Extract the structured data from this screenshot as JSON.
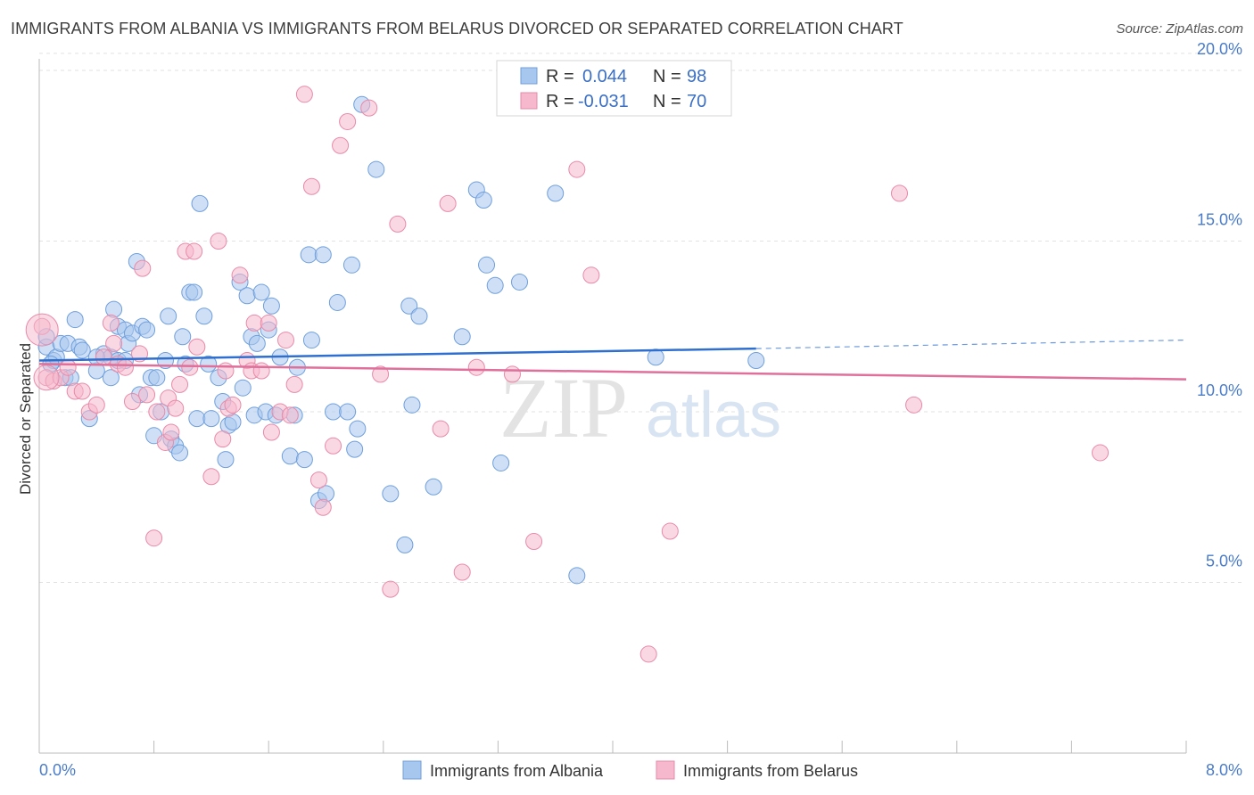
{
  "title": "IMMIGRANTS FROM ALBANIA VS IMMIGRANTS FROM BELARUS DIVORCED OR SEPARATED CORRELATION CHART",
  "source": "Source: ZipAtlas.com",
  "watermark": {
    "zip": "ZIP",
    "atlas": "atlas"
  },
  "chart_data": {
    "type": "scatter",
    "xlabel": "",
    "ylabel": "Divorced or Separated",
    "xlim": [
      0,
      8
    ],
    "ylim": [
      0,
      20
    ],
    "x_tick_labels": [
      "0.0%",
      "8.0%"
    ],
    "y_ticks": [
      5,
      10,
      15,
      20
    ],
    "y_tick_labels": [
      "5.0%",
      "10.0%",
      "15.0%",
      "20.0%"
    ],
    "grid": true,
    "legend": {
      "position": "top-center",
      "entries": [
        {
          "r_label": "R =",
          "r_value": "0.044",
          "n_label": "N =",
          "n_value": "98"
        },
        {
          "r_label": "R =",
          "r_value": "-0.031",
          "n_label": "N =",
          "n_value": "70"
        }
      ]
    },
    "series": [
      {
        "name": "Immigrants from Albania",
        "color": "#a7c7ef",
        "edge": "#6f9fdc",
        "line_color": "#2f6fd0",
        "trend": {
          "x0": 0,
          "y0": 11.5,
          "x1": 5.0,
          "y1": 11.85,
          "dash_to_x": 8.0,
          "dash_to_y": 12.1
        },
        "points": [
          [
            0.05,
            11.9
          ],
          [
            0.05,
            12.2
          ],
          [
            0.1,
            11.5
          ],
          [
            0.12,
            11.6
          ],
          [
            0.15,
            12.0
          ],
          [
            0.18,
            11.0
          ],
          [
            0.2,
            12.0
          ],
          [
            0.25,
            12.7
          ],
          [
            0.28,
            11.9
          ],
          [
            0.3,
            11.8
          ],
          [
            0.35,
            9.8
          ],
          [
            0.4,
            11.2
          ],
          [
            0.45,
            11.7
          ],
          [
            0.5,
            11.0
          ],
          [
            0.5,
            11.6
          ],
          [
            0.52,
            13.0
          ],
          [
            0.55,
            11.5
          ],
          [
            0.55,
            12.5
          ],
          [
            0.6,
            12.4
          ],
          [
            0.62,
            12.0
          ],
          [
            0.65,
            12.3
          ],
          [
            0.68,
            14.4
          ],
          [
            0.7,
            10.5
          ],
          [
            0.72,
            12.5
          ],
          [
            0.75,
            12.4
          ],
          [
            0.78,
            11.0
          ],
          [
            0.8,
            9.3
          ],
          [
            0.82,
            11.0
          ],
          [
            0.85,
            10.0
          ],
          [
            0.88,
            11.5
          ],
          [
            0.9,
            12.8
          ],
          [
            0.92,
            9.2
          ],
          [
            0.95,
            9.0
          ],
          [
            0.98,
            8.8
          ],
          [
            1.0,
            12.2
          ],
          [
            1.02,
            11.4
          ],
          [
            1.05,
            13.5
          ],
          [
            1.08,
            13.5
          ],
          [
            1.1,
            9.8
          ],
          [
            1.12,
            16.1
          ],
          [
            1.15,
            12.8
          ],
          [
            1.18,
            11.4
          ],
          [
            1.2,
            9.8
          ],
          [
            1.25,
            11.0
          ],
          [
            1.28,
            10.3
          ],
          [
            1.3,
            8.6
          ],
          [
            1.32,
            9.6
          ],
          [
            1.35,
            9.7
          ],
          [
            1.4,
            13.8
          ],
          [
            1.42,
            10.7
          ],
          [
            1.45,
            13.4
          ],
          [
            1.48,
            12.2
          ],
          [
            1.5,
            9.9
          ],
          [
            1.52,
            12.0
          ],
          [
            1.55,
            13.5
          ],
          [
            1.58,
            10.0
          ],
          [
            1.6,
            12.4
          ],
          [
            1.62,
            13.1
          ],
          [
            1.65,
            9.9
          ],
          [
            1.68,
            11.6
          ],
          [
            1.75,
            8.7
          ],
          [
            1.78,
            9.9
          ],
          [
            1.8,
            11.3
          ],
          [
            1.85,
            8.6
          ],
          [
            1.88,
            14.6
          ],
          [
            1.9,
            12.1
          ],
          [
            1.95,
            7.4
          ],
          [
            1.98,
            14.6
          ],
          [
            2.0,
            7.6
          ],
          [
            2.05,
            10.0
          ],
          [
            2.08,
            13.2
          ],
          [
            2.15,
            10.0
          ],
          [
            2.18,
            14.3
          ],
          [
            2.2,
            8.9
          ],
          [
            2.22,
            9.5
          ],
          [
            2.25,
            19.0
          ],
          [
            2.35,
            17.1
          ],
          [
            2.45,
            7.6
          ],
          [
            2.55,
            6.1
          ],
          [
            2.58,
            13.1
          ],
          [
            2.6,
            10.2
          ],
          [
            2.65,
            12.8
          ],
          [
            2.75,
            7.8
          ],
          [
            2.95,
            12.2
          ],
          [
            3.05,
            16.5
          ],
          [
            3.1,
            16.2
          ],
          [
            3.12,
            14.3
          ],
          [
            3.18,
            13.7
          ],
          [
            3.22,
            8.5
          ],
          [
            3.35,
            13.8
          ],
          [
            3.6,
            16.4
          ],
          [
            3.75,
            5.2
          ],
          [
            4.3,
            11.6
          ],
          [
            5.0,
            11.5
          ],
          [
            0.08,
            11.4
          ],
          [
            0.22,
            11.0
          ],
          [
            0.4,
            11.6
          ],
          [
            0.6,
            11.5
          ]
        ]
      },
      {
        "name": "Immigrants from Belarus",
        "color": "#f5b8cc",
        "edge": "#e88aa8",
        "line_color": "#e0709a",
        "trend": {
          "x0": 0,
          "y0": 11.4,
          "x1": 8.0,
          "y1": 10.95
        },
        "points": [
          [
            0.02,
            12.5
          ],
          [
            0.05,
            11.0
          ],
          [
            0.1,
            10.9
          ],
          [
            0.15,
            11.0
          ],
          [
            0.2,
            11.3
          ],
          [
            0.25,
            10.6
          ],
          [
            0.3,
            10.6
          ],
          [
            0.35,
            10.0
          ],
          [
            0.4,
            10.2
          ],
          [
            0.45,
            11.6
          ],
          [
            0.5,
            12.6
          ],
          [
            0.52,
            12.0
          ],
          [
            0.55,
            11.4
          ],
          [
            0.6,
            11.3
          ],
          [
            0.65,
            10.3
          ],
          [
            0.7,
            11.7
          ],
          [
            0.72,
            14.2
          ],
          [
            0.75,
            10.5
          ],
          [
            0.8,
            6.3
          ],
          [
            0.82,
            10.0
          ],
          [
            0.88,
            9.1
          ],
          [
            0.9,
            10.4
          ],
          [
            0.92,
            9.4
          ],
          [
            0.95,
            10.1
          ],
          [
            0.98,
            10.8
          ],
          [
            1.02,
            14.7
          ],
          [
            1.05,
            11.3
          ],
          [
            1.08,
            14.7
          ],
          [
            1.1,
            11.9
          ],
          [
            1.2,
            8.1
          ],
          [
            1.25,
            15.0
          ],
          [
            1.28,
            9.2
          ],
          [
            1.3,
            11.2
          ],
          [
            1.32,
            10.1
          ],
          [
            1.35,
            10.2
          ],
          [
            1.4,
            14.0
          ],
          [
            1.45,
            11.5
          ],
          [
            1.48,
            11.2
          ],
          [
            1.5,
            12.6
          ],
          [
            1.55,
            11.2
          ],
          [
            1.6,
            12.6
          ],
          [
            1.62,
            9.4
          ],
          [
            1.68,
            10.0
          ],
          [
            1.72,
            12.1
          ],
          [
            1.75,
            9.9
          ],
          [
            1.78,
            10.8
          ],
          [
            1.85,
            19.3
          ],
          [
            1.9,
            16.6
          ],
          [
            1.95,
            8.0
          ],
          [
            1.98,
            7.2
          ],
          [
            2.05,
            9.0
          ],
          [
            2.1,
            17.8
          ],
          [
            2.15,
            18.5
          ],
          [
            2.3,
            18.9
          ],
          [
            2.38,
            11.1
          ],
          [
            2.45,
            4.8
          ],
          [
            2.5,
            15.5
          ],
          [
            2.8,
            9.5
          ],
          [
            2.85,
            16.1
          ],
          [
            2.95,
            5.3
          ],
          [
            3.05,
            11.3
          ],
          [
            3.3,
            11.1
          ],
          [
            3.45,
            6.2
          ],
          [
            3.75,
            17.1
          ],
          [
            3.85,
            14.0
          ],
          [
            4.25,
            2.9
          ],
          [
            4.4,
            6.5
          ],
          [
            6.0,
            16.4
          ],
          [
            6.1,
            10.2
          ],
          [
            7.4,
            8.8
          ]
        ]
      }
    ]
  },
  "bottom_legend": [
    "Immigrants from Albania",
    "Immigrants from Belarus"
  ]
}
